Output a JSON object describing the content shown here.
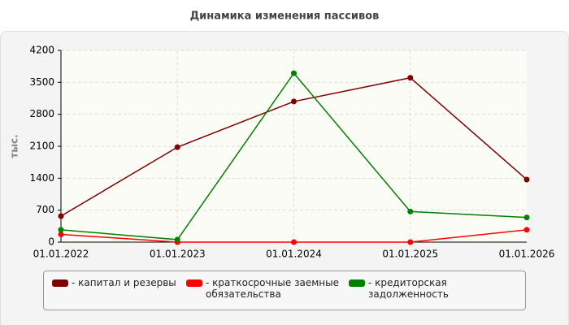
{
  "chart_data": {
    "type": "line",
    "title": "Динамика изменения пассивов",
    "y_label": "тыс.",
    "categories": [
      "01.01.2022",
      "01.01.2023",
      "01.01.2024",
      "01.01.2025",
      "01.01.2026"
    ],
    "series": [
      {
        "name": "- капитал и резервы",
        "color": "#800000",
        "values": [
          570,
          2080,
          3080,
          3600,
          1370
        ]
      },
      {
        "name": "- краткосрочные заемные обязательства",
        "color": "#ff0000",
        "values": [
          170,
          0,
          0,
          0,
          270
        ]
      },
      {
        "name": "- кредиторская задолженность",
        "color": "#008000",
        "values": [
          270,
          55,
          3700,
          670,
          540
        ]
      }
    ],
    "ylim": [
      0,
      4200
    ],
    "yticks": [
      0,
      700,
      1400,
      2100,
      2800,
      3500,
      4200
    ],
    "grid": true
  }
}
